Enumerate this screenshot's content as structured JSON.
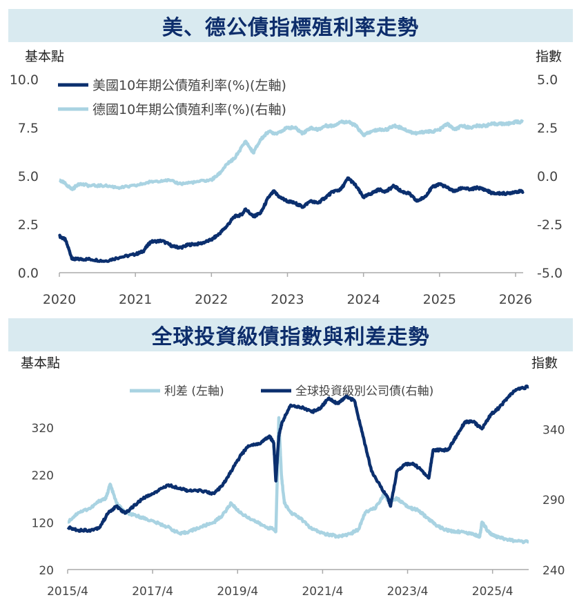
{
  "colors": {
    "us": "#0b2f6e",
    "de": "#a9d3e2",
    "title_bg": "#d9eaf0",
    "title_text": "#0d2d6b",
    "axis": "#aaaaaa"
  },
  "chart_data": [
    {
      "type": "line",
      "title": "美、德公債指標殖利率走勢",
      "ylabel_left": "基本點",
      "ylabel_right": "指數",
      "ylim_left": [
        0,
        10
      ],
      "ylim_right": [
        -5,
        5
      ],
      "xlim": [
        2020,
        2026.1
      ],
      "x_ticks": [
        "2020",
        "2021",
        "2022",
        "2023",
        "2024",
        "2025",
        "2026"
      ],
      "y_ticks_left": [
        "0.0",
        "2.5",
        "5.0",
        "7.5",
        "10.0"
      ],
      "y_ticks_right": [
        "-5.0",
        "-2.5",
        "0.0",
        "2.5",
        "5.0"
      ],
      "legend": "top-left",
      "series": [
        {
          "name": "美國10年期公債殖利率(%)(左軸)",
          "axis": "left",
          "x": [
            2020.0,
            2020.08,
            2020.17,
            2020.25,
            2020.4,
            2020.6,
            2020.8,
            2021.0,
            2021.1,
            2021.2,
            2021.35,
            2021.5,
            2021.6,
            2021.7,
            2021.85,
            2022.0,
            2022.1,
            2022.2,
            2022.3,
            2022.4,
            2022.45,
            2022.55,
            2022.65,
            2022.75,
            2022.82,
            2022.9,
            2023.0,
            2023.1,
            2023.2,
            2023.3,
            2023.4,
            2023.5,
            2023.6,
            2023.7,
            2023.8,
            2023.9,
            2024.0,
            2024.1,
            2024.2,
            2024.3,
            2024.4,
            2024.5,
            2024.6,
            2024.7,
            2024.8,
            2024.9,
            2025.0,
            2025.1,
            2025.2,
            2025.3,
            2025.4,
            2025.5,
            2025.6,
            2025.7,
            2025.8,
            2025.9,
            2026.0,
            2026.1
          ],
          "values": [
            1.9,
            1.7,
            0.7,
            0.7,
            0.7,
            0.6,
            0.8,
            0.95,
            1.1,
            1.6,
            1.65,
            1.35,
            1.3,
            1.45,
            1.5,
            1.7,
            2.0,
            2.4,
            2.9,
            3.0,
            3.3,
            2.9,
            3.1,
            3.9,
            4.2,
            3.9,
            3.7,
            3.6,
            3.4,
            3.7,
            3.6,
            3.9,
            4.2,
            4.3,
            4.9,
            4.5,
            3.9,
            4.1,
            4.3,
            4.2,
            4.5,
            4.2,
            4.1,
            3.7,
            3.9,
            4.4,
            4.6,
            4.4,
            4.2,
            4.4,
            4.3,
            4.4,
            4.3,
            4.1,
            4.1,
            4.1,
            4.2,
            4.2
          ]
        },
        {
          "name": "德國10年期公債殖利率(%)(右軸)",
          "axis": "right",
          "x": [
            2020.0,
            2020.08,
            2020.17,
            2020.25,
            2020.4,
            2020.6,
            2020.8,
            2021.0,
            2021.2,
            2021.4,
            2021.6,
            2021.8,
            2022.0,
            2022.1,
            2022.2,
            2022.3,
            2022.45,
            2022.55,
            2022.65,
            2022.75,
            2022.85,
            2023.0,
            2023.1,
            2023.2,
            2023.3,
            2023.4,
            2023.5,
            2023.6,
            2023.7,
            2023.8,
            2023.9,
            2024.0,
            2024.1,
            2024.2,
            2024.3,
            2024.4,
            2024.5,
            2024.6,
            2024.7,
            2024.8,
            2024.9,
            2025.0,
            2025.1,
            2025.2,
            2025.3,
            2025.4,
            2025.5,
            2025.6,
            2025.7,
            2025.8,
            2025.9,
            2026.0,
            2026.1
          ],
          "values": [
            -0.2,
            -0.4,
            -0.7,
            -0.4,
            -0.5,
            -0.5,
            -0.6,
            -0.5,
            -0.3,
            -0.2,
            -0.4,
            -0.3,
            -0.2,
            0.1,
            0.6,
            0.9,
            1.8,
            1.2,
            1.9,
            2.3,
            2.2,
            2.5,
            2.5,
            2.2,
            2.5,
            2.4,
            2.6,
            2.6,
            2.8,
            2.8,
            2.6,
            2.1,
            2.3,
            2.4,
            2.4,
            2.6,
            2.5,
            2.3,
            2.2,
            2.3,
            2.3,
            2.4,
            2.7,
            2.4,
            2.6,
            2.5,
            2.6,
            2.6,
            2.7,
            2.7,
            2.7,
            2.8,
            2.8
          ]
        }
      ]
    },
    {
      "type": "line",
      "title": "全球投資級債指數與利差走勢",
      "ylabel_left": "基本點",
      "ylabel_right": "指數",
      "ylim_left": [
        20,
        420
      ],
      "ylim_right": [
        240,
        375
      ],
      "xlim": [
        2015.25,
        2026.1
      ],
      "x_ticks": [
        "2015/4",
        "2017/4",
        "2019/4",
        "2021/4",
        "2023/4",
        "2025/4"
      ],
      "y_ticks_left": [
        "20",
        "120",
        "220",
        "320"
      ],
      "y_ticks_right": [
        "240",
        "290",
        "340"
      ],
      "legend": "top-center",
      "series": [
        {
          "name": "利差 (左軸)",
          "axis": "left",
          "x": [
            2015.25,
            2015.5,
            2015.8,
            2016.0,
            2016.15,
            2016.25,
            2016.4,
            2016.6,
            2016.8,
            2017.0,
            2017.3,
            2017.6,
            2017.9,
            2018.1,
            2018.4,
            2018.7,
            2018.9,
            2019.1,
            2019.3,
            2019.6,
            2019.9,
            2020.1,
            2020.15,
            2020.22,
            2020.28,
            2020.35,
            2020.5,
            2020.7,
            2021.0,
            2021.3,
            2021.6,
            2021.9,
            2022.1,
            2022.25,
            2022.5,
            2022.7,
            2022.8,
            2023.0,
            2023.15,
            2023.3,
            2023.5,
            2023.7,
            2023.9,
            2024.1,
            2024.3,
            2024.5,
            2024.8,
            2024.95,
            2025.0,
            2025.15,
            2025.3,
            2025.5,
            2025.8,
            2026.1
          ],
          "values": [
            120,
            140,
            150,
            165,
            170,
            200,
            160,
            140,
            135,
            130,
            120,
            110,
            95,
            100,
            110,
            120,
            135,
            160,
            140,
            125,
            110,
            105,
            100,
            340,
            220,
            160,
            140,
            130,
            105,
            95,
            90,
            95,
            105,
            140,
            150,
            180,
            165,
            170,
            160,
            150,
            145,
            130,
            115,
            105,
            100,
            100,
            95,
            90,
            120,
            100,
            90,
            85,
            80,
            78
          ]
        },
        {
          "name": "全球投資級別公司債(右軸)",
          "axis": "right",
          "x": [
            2015.25,
            2015.5,
            2015.8,
            2016.0,
            2016.2,
            2016.4,
            2016.6,
            2016.8,
            2017.0,
            2017.3,
            2017.6,
            2017.9,
            2018.1,
            2018.4,
            2018.7,
            2018.9,
            2019.1,
            2019.3,
            2019.5,
            2019.8,
            2020.0,
            2020.1,
            2020.15,
            2020.22,
            2020.3,
            2020.5,
            2020.8,
            2021.0,
            2021.2,
            2021.4,
            2021.6,
            2021.8,
            2022.0,
            2022.2,
            2022.4,
            2022.6,
            2022.8,
            2022.85,
            2023.0,
            2023.2,
            2023.4,
            2023.6,
            2023.75,
            2023.85,
            2024.0,
            2024.2,
            2024.4,
            2024.6,
            2024.8,
            2025.0,
            2025.2,
            2025.4,
            2025.6,
            2025.8,
            2026.1
          ],
          "values": [
            270,
            268,
            268,
            270,
            280,
            285,
            280,
            285,
            290,
            295,
            300,
            298,
            296,
            296,
            294,
            300,
            310,
            320,
            328,
            330,
            335,
            330,
            303,
            335,
            345,
            357,
            355,
            352,
            355,
            362,
            358,
            363,
            360,
            335,
            310,
            300,
            290,
            285,
            310,
            315,
            315,
            310,
            305,
            325,
            325,
            325,
            335,
            345,
            345,
            340,
            350,
            355,
            362,
            368,
            370
          ]
        }
      ]
    }
  ]
}
